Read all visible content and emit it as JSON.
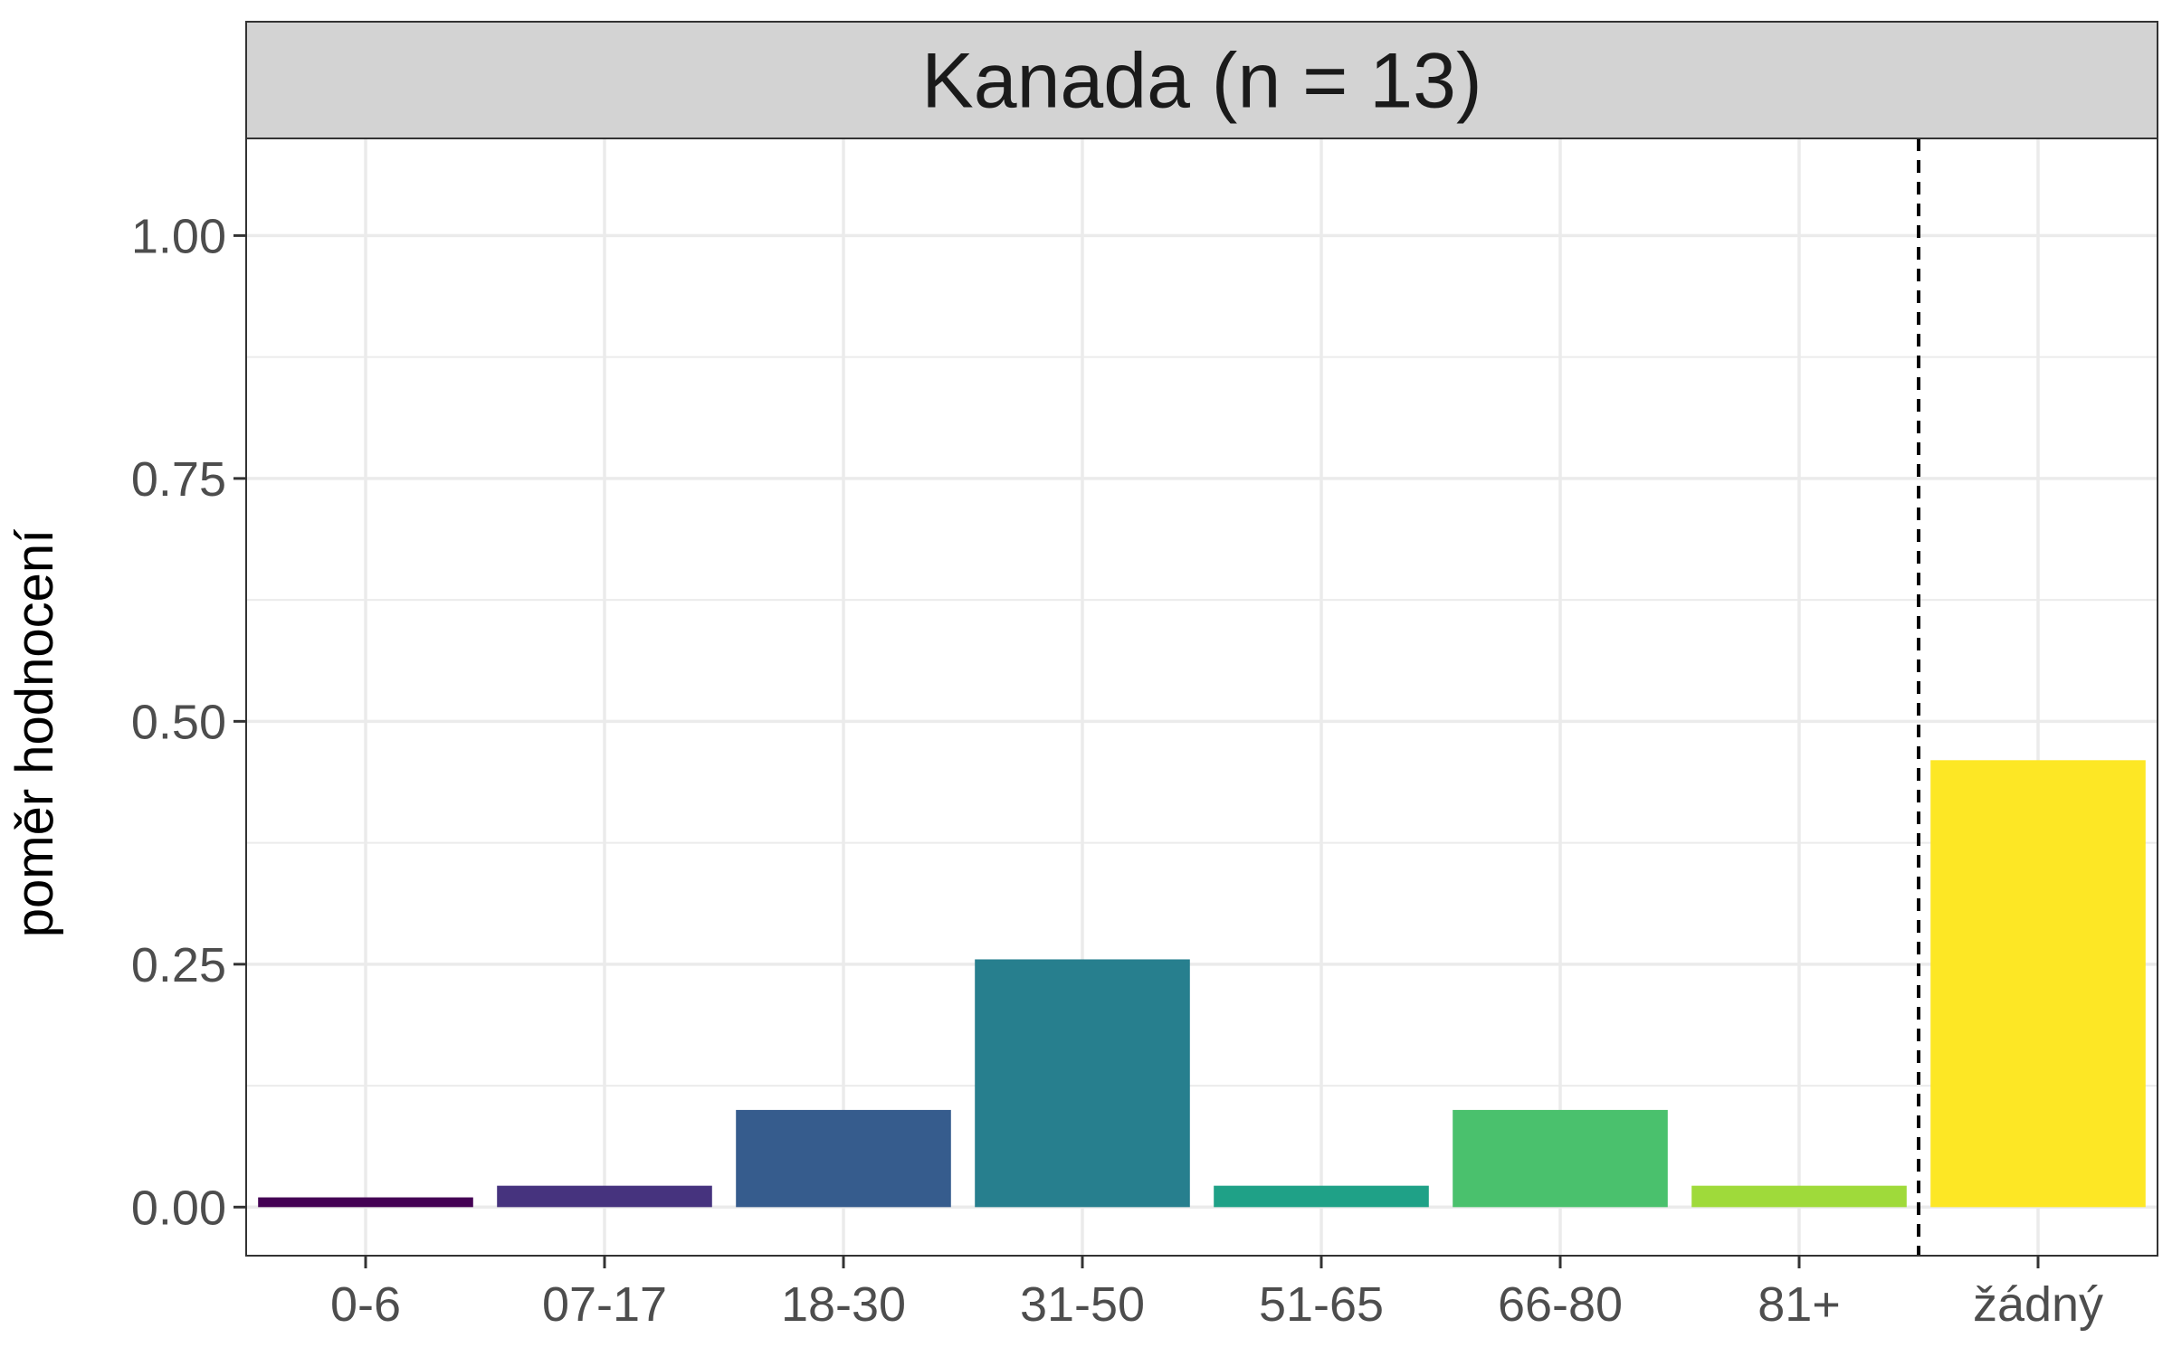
{
  "chart_data": {
    "type": "bar",
    "title": "Kanada (n = 13)",
    "xlabel": "",
    "ylabel": "poměr hodnocení",
    "ylim": [
      -0.05,
      1.1
    ],
    "yticks": [
      "0.00",
      "0.25",
      "0.50",
      "0.75",
      "1.00"
    ],
    "categories": [
      "0-6",
      "07-17",
      "18-30",
      "31-50",
      "51-65",
      "66-80",
      "81+",
      "žádný"
    ],
    "values": [
      0.01,
      0.022,
      0.1,
      0.255,
      0.022,
      0.1,
      0.022,
      0.46
    ],
    "colors": [
      "#440154",
      "#46337E",
      "#365C8D",
      "#277F8E",
      "#1FA187",
      "#4AC16D",
      "#9FDA3A",
      "#FDE725"
    ],
    "reference_line": {
      "style": "dashed",
      "between": [
        "81+",
        "žádný"
      ]
    },
    "grid": true,
    "legend": "none"
  }
}
